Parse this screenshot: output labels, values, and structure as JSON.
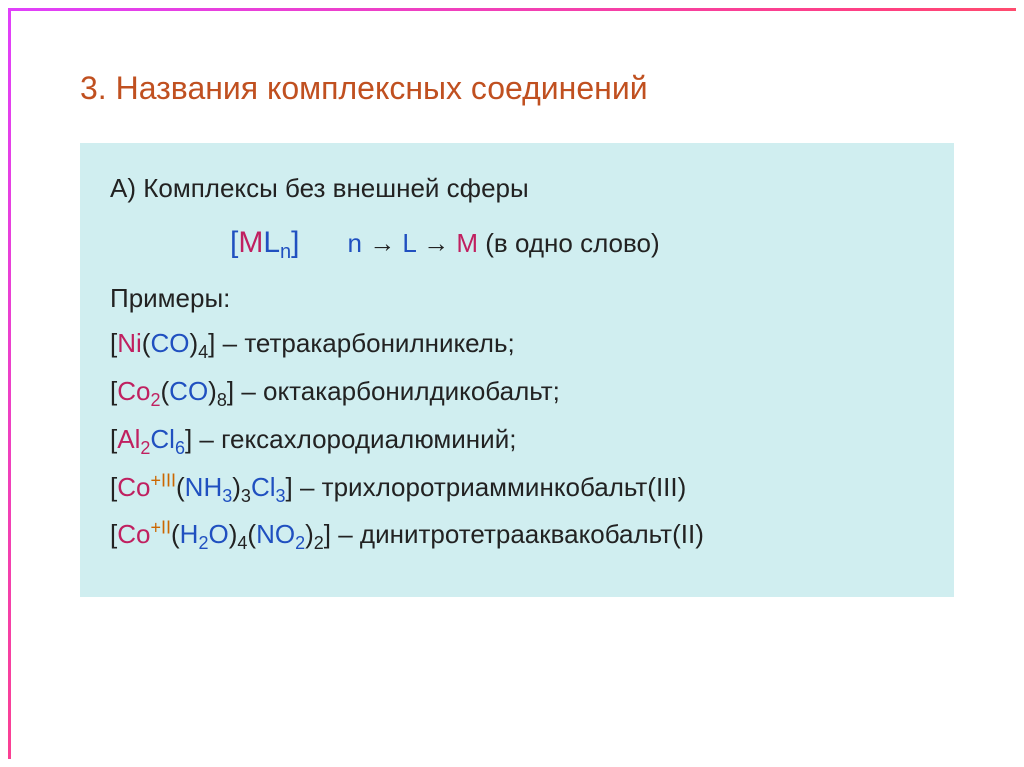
{
  "colors": {
    "title": "#c05020",
    "body_bg": "#d0eef0",
    "text": "#222222",
    "red": "#c02060",
    "blue": "#2050c0",
    "orange": "#cc6600",
    "border_gradient": [
      "#e040fb",
      "#ff4081",
      "#ff9100"
    ]
  },
  "typography": {
    "title_fontsize": 32,
    "body_fontsize": 26,
    "sub_fontsize": 18,
    "font_family": "Arial"
  },
  "title": "3. Названия комплексных соединений",
  "subtitle": "А) Комплексы без внешней сферы",
  "formula": {
    "open": "[",
    "M": "M",
    "L": "L",
    "n": "n",
    "close": "]",
    "path_n": "n",
    "arrow": " → ",
    "path_L": "L",
    "path_M": "M",
    "note": " (в одно слово)"
  },
  "examples_label": "Примеры:",
  "items": [
    {
      "segments": [
        {
          "t": "[",
          "cls": "name-text"
        },
        {
          "t": "Ni",
          "cls": "el-red"
        },
        {
          "t": "(",
          "cls": "name-text"
        },
        {
          "t": "CO",
          "cls": "el-blue"
        },
        {
          "t": ")",
          "cls": "name-text"
        },
        {
          "t": "4",
          "cls": "name-text sub"
        },
        {
          "t": "]",
          "cls": "name-text"
        }
      ],
      "name": "тетракарбонилникель",
      "suffix": ";"
    },
    {
      "segments": [
        {
          "t": "[",
          "cls": "name-text"
        },
        {
          "t": "Co",
          "cls": "el-red"
        },
        {
          "t": "2",
          "cls": "el-red sub"
        },
        {
          "t": "(",
          "cls": "name-text"
        },
        {
          "t": "CO",
          "cls": "el-blue"
        },
        {
          "t": ")",
          "cls": "name-text"
        },
        {
          "t": "8",
          "cls": "name-text sub"
        },
        {
          "t": "]",
          "cls": "name-text"
        }
      ],
      "name": "октакарбонилдикобальт",
      "suffix": ";"
    },
    {
      "segments": [
        {
          "t": "[",
          "cls": "name-text"
        },
        {
          "t": "Al",
          "cls": "el-red"
        },
        {
          "t": "2",
          "cls": "el-red sub"
        },
        {
          "t": "Cl",
          "cls": "el-blue"
        },
        {
          "t": "6",
          "cls": "el-blue sub"
        },
        {
          "t": "]",
          "cls": "name-text"
        }
      ],
      "name": "гексахлородиалюминий",
      "suffix": ";"
    },
    {
      "segments": [
        {
          "t": "[",
          "cls": "name-text"
        },
        {
          "t": "Co",
          "cls": "el-red"
        },
        {
          "t": "+III",
          "cls": "el-orn sup"
        },
        {
          "t": "(",
          "cls": "name-text"
        },
        {
          "t": "NH",
          "cls": "el-blue"
        },
        {
          "t": "3",
          "cls": "el-blue sub"
        },
        {
          "t": ")",
          "cls": "name-text"
        },
        {
          "t": "3",
          "cls": "name-text sub"
        },
        {
          "t": "Cl",
          "cls": "el-blue"
        },
        {
          "t": "3",
          "cls": "el-blue sub"
        },
        {
          "t": "]",
          "cls": "name-text"
        }
      ],
      "name": "трихлоротриамминкобальт(III)",
      "suffix": ""
    },
    {
      "segments": [
        {
          "t": "[",
          "cls": "name-text"
        },
        {
          "t": "Co",
          "cls": "el-red"
        },
        {
          "t": "+II",
          "cls": "el-orn sup"
        },
        {
          "t": "(",
          "cls": "name-text"
        },
        {
          "t": "H",
          "cls": "el-blue"
        },
        {
          "t": "2",
          "cls": "el-blue sub"
        },
        {
          "t": "O",
          "cls": "el-blue"
        },
        {
          "t": ")",
          "cls": "name-text"
        },
        {
          "t": "4",
          "cls": "name-text sub"
        },
        {
          "t": "(",
          "cls": "name-text"
        },
        {
          "t": "NO",
          "cls": "el-blue"
        },
        {
          "t": "2",
          "cls": "el-blue sub"
        },
        {
          "t": ")",
          "cls": "name-text"
        },
        {
          "t": "2",
          "cls": "name-text sub"
        },
        {
          "t": "]",
          "cls": "name-text"
        }
      ],
      "name": "динитротетрааквакобальт(II)",
      "suffix": ""
    }
  ],
  "dash": " – "
}
